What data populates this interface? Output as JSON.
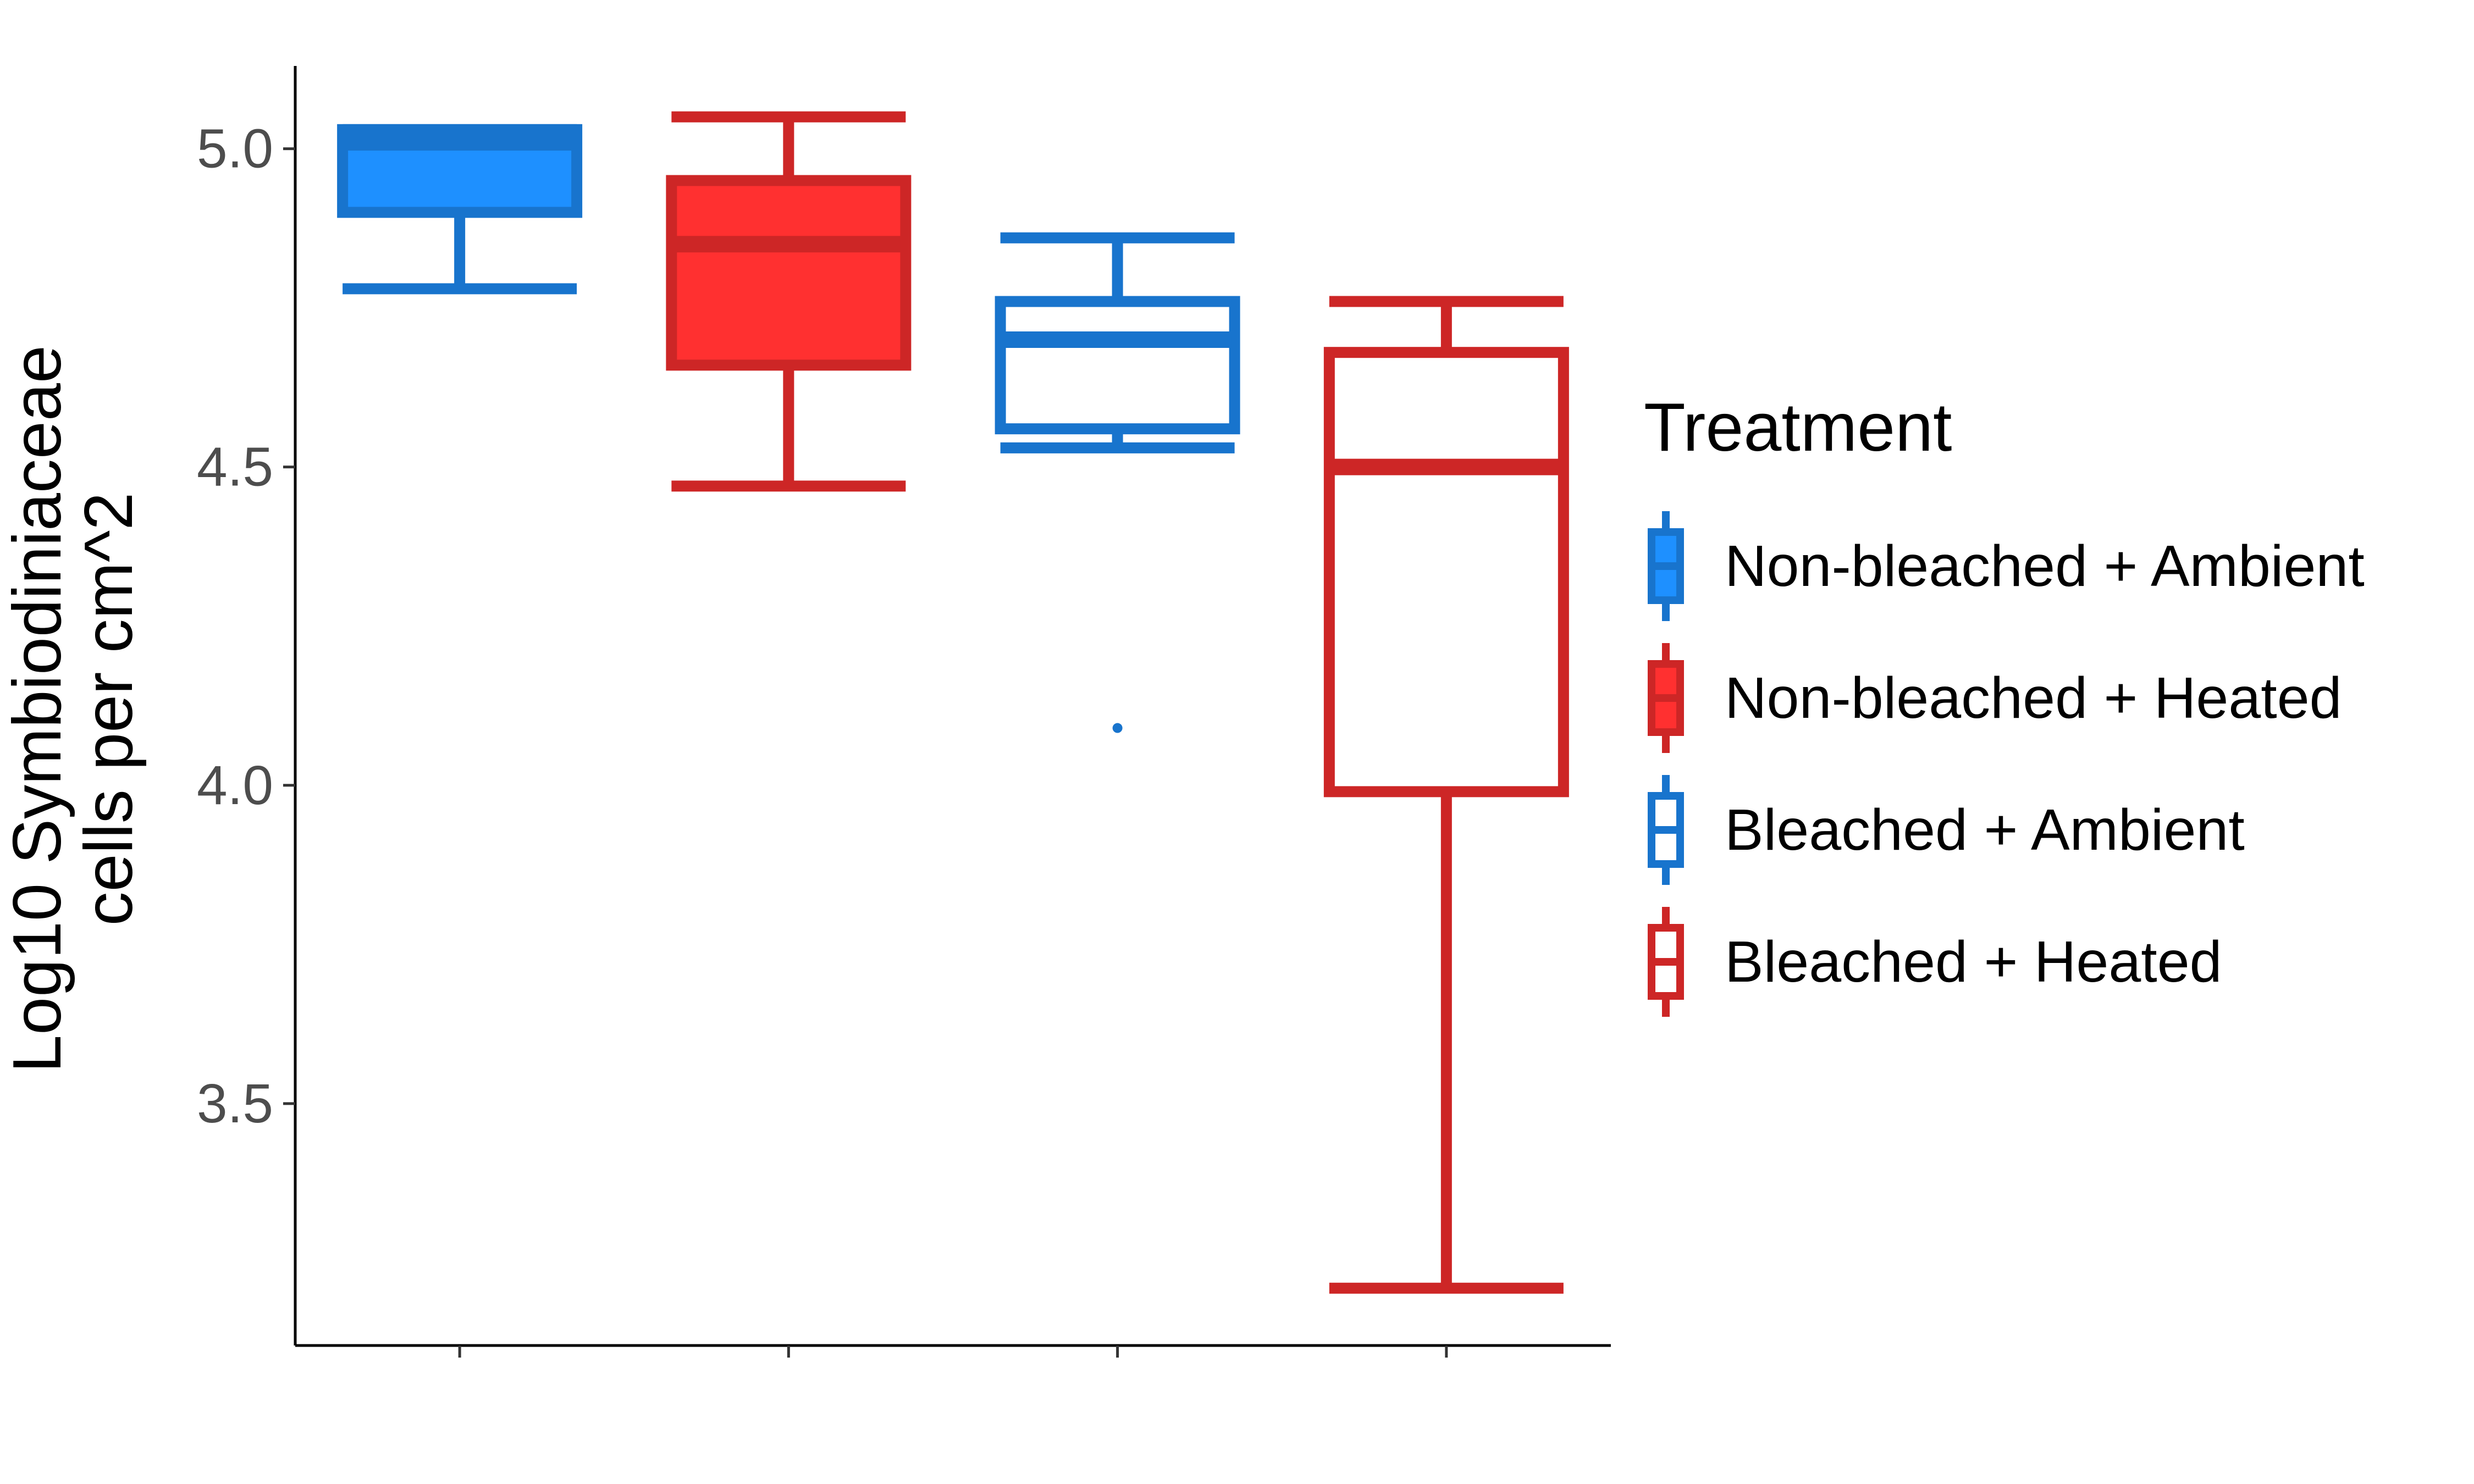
{
  "chart_data": {
    "type": "box",
    "ylabel_lines": [
      "Log10 Symbiodiniaceae",
      "cells per cm^2"
    ],
    "xlabel": "",
    "ylim": [
      3.12,
      5.13
    ],
    "yticks": [
      3.5,
      4.0,
      4.5,
      5.0
    ],
    "ytick_labels": [
      "3.5",
      "4.0",
      "4.5",
      "5.0"
    ],
    "grid": false,
    "legend": {
      "title": "Treatment",
      "position": "right",
      "items": [
        {
          "label": "Non-bleached + Ambient",
          "stroke": "#1874CD",
          "fill": "#1E90FF"
        },
        {
          "label": "Non-bleached + Heated",
          "stroke": "#CD2626",
          "fill": "#FF3030"
        },
        {
          "label": "Bleached + Ambient",
          "stroke": "#1874CD",
          "fill": "#FFFFFF"
        },
        {
          "label": "Bleached + Heated",
          "stroke": "#CD2626",
          "fill": "#FFFFFF"
        }
      ]
    },
    "boxes": [
      {
        "group": "Non-bleached + Ambient",
        "whisker_low": 4.78,
        "q1": 4.9,
        "median": 5.01,
        "q3": 5.03,
        "whisker_high": 5.03,
        "outliers": [],
        "stroke": "#1874CD",
        "fill": "#1E90FF"
      },
      {
        "group": "Non-bleached + Heated",
        "whisker_low": 4.47,
        "q1": 4.66,
        "median": 4.85,
        "q3": 4.95,
        "whisker_high": 5.05,
        "outliers": [],
        "stroke": "#CD2626",
        "fill": "#FF3030"
      },
      {
        "group": "Bleached + Ambient",
        "whisker_low": 4.53,
        "q1": 4.56,
        "median": 4.7,
        "q3": 4.76,
        "whisker_high": 4.86,
        "outliers": [
          4.09
        ],
        "stroke": "#1874CD",
        "fill": "#FFFFFF"
      },
      {
        "group": "Bleached + Heated",
        "whisker_low": 3.21,
        "q1": 3.99,
        "median": 4.5,
        "q3": 4.68,
        "whisker_high": 4.76,
        "outliers": [],
        "stroke": "#CD2626",
        "fill": "#FFFFFF"
      }
    ]
  }
}
